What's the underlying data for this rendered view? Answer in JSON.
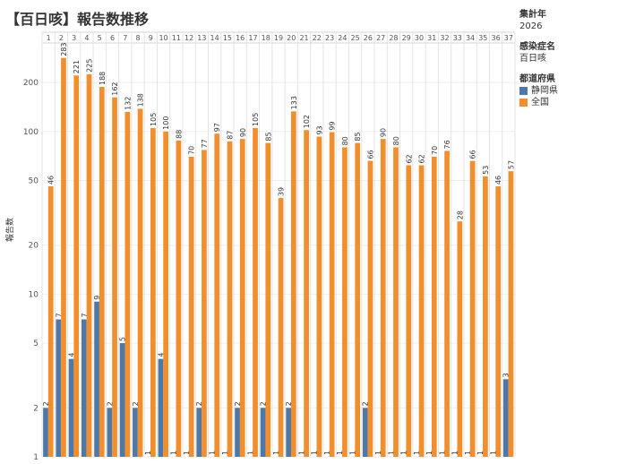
{
  "title": "【百日咳】報告数推移",
  "sidebar": {
    "year_label": "集計年",
    "year_value": "2026",
    "disease_label": "感染症名",
    "disease_value": "百日咳",
    "pref_label": "都道府県",
    "legend": [
      {
        "name": "静岡県",
        "color": "#4e79a7"
      },
      {
        "name": "全国",
        "color": "#f28e2b"
      }
    ]
  },
  "chart_data": {
    "type": "bar",
    "title": "【百日咳】報告数推移",
    "ylabel": "報告数",
    "yscale": "log",
    "ylim": [
      1,
      350
    ],
    "yticks": [
      1,
      2,
      5,
      10,
      20,
      50,
      100,
      200
    ],
    "grid": true,
    "legend_position": "right",
    "categories": [
      "1",
      "2",
      "3",
      "4",
      "5",
      "6",
      "7",
      "8",
      "9",
      "10",
      "11",
      "12",
      "13",
      "14",
      "15",
      "16",
      "17",
      "18",
      "19",
      "20",
      "21",
      "22",
      "23",
      "24",
      "25",
      "26",
      "27",
      "28",
      "29",
      "30",
      "31",
      "32",
      "33",
      "34",
      "35",
      "36",
      "37"
    ],
    "series": [
      {
        "name": "静岡県",
        "color": "#4e79a7",
        "values": [
          2,
          7,
          4,
          7,
          9,
          2,
          5,
          2,
          1,
          4,
          1,
          1,
          2,
          1,
          1,
          2,
          1,
          2,
          1,
          2,
          1,
          1,
          1,
          1,
          1,
          2,
          1,
          1,
          1,
          1,
          1,
          1,
          1,
          1,
          1,
          1,
          3
        ]
      },
      {
        "name": "全国",
        "color": "#f28e2b",
        "values": [
          46,
          283,
          221,
          225,
          188,
          162,
          132,
          138,
          105,
          100,
          88,
          70,
          77,
          97,
          87,
          90,
          105,
          85,
          39,
          133,
          102,
          93,
          99,
          80,
          85,
          66,
          90,
          80,
          62,
          62,
          70,
          76,
          28,
          66,
          53,
          46,
          57
        ]
      }
    ]
  }
}
